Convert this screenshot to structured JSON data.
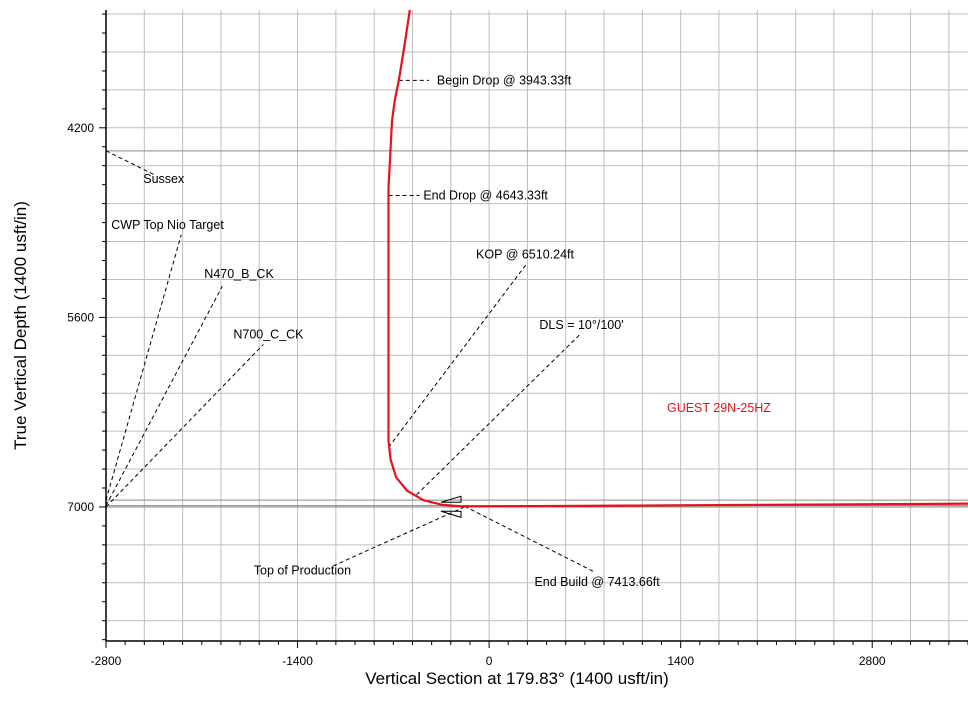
{
  "chart_data": {
    "type": "line",
    "title": "",
    "xlabel": "Vertical Section at 179.83° (1400 usft/in)",
    "ylabel": "True Vertical Depth (1400 usft/in)",
    "x_ticks": [
      -2800,
      -1400,
      0,
      1400,
      2800
    ],
    "y_ticks": [
      4200,
      5600,
      7000
    ],
    "xlim": [
      -2800,
      3500
    ],
    "ylim": [
      3330,
      7990
    ],
    "y_inverted": true,
    "grid": true,
    "colors": {
      "well": "#e8101c",
      "grid": "#bdbdbd",
      "leader": "#000000"
    },
    "series": [
      {
        "name": "GUEST 29N-25HZ",
        "x": [
          -580,
          -620,
          -660,
          -690,
          -710,
          -720,
          -730,
          -735,
          -735,
          -735,
          -720,
          -680,
          -600,
          -480,
          -340,
          -200,
          0,
          500,
          1000,
          1500,
          2000,
          2500,
          3000,
          3500
        ],
        "y": [
          3330,
          3600,
          3850,
          4000,
          4150,
          4350,
          4550,
          4643,
          5500,
          6510,
          6650,
          6780,
          6880,
          6950,
          6985,
          6995,
          6995,
          6993,
          6990,
          6987,
          6985,
          6982,
          6979,
          6975
        ]
      }
    ],
    "formation_lines": [
      {
        "name": "Sussex",
        "tvd": 4370
      },
      {
        "name": "CWP Top Nio Target",
        "tvd": 6950
      },
      {
        "name": "N470_B_CK",
        "tvd": 6990
      },
      {
        "name": "N700_C_CK",
        "tvd": 7000
      }
    ],
    "annotations": [
      {
        "text": "Begin Drop @ 3943.33ft",
        "x": -660,
        "y": 3850,
        "tx": -440,
        "ty": 3850
      },
      {
        "text": "End Drop @ 4643.33ft",
        "x": -735,
        "y": 4700,
        "tx": -510,
        "ty": 4700
      },
      {
        "text": "KOP @ 6510.24ft",
        "x": -735,
        "y": 6560,
        "tx": 270,
        "ty": 5210
      },
      {
        "text": "DLS = 10°/100'",
        "x": -530,
        "y": 6910,
        "tx": 660,
        "ty": 5730
      },
      {
        "text": "Top of Production",
        "x": -180,
        "y": 7000,
        "tx": -1150,
        "ty": 7440
      },
      {
        "text": "End Build @ 7413.66ft",
        "x": -180,
        "y": 6995,
        "tx": 770,
        "ty": 7480
      },
      {
        "text": "Sussex",
        "x": -2800,
        "y": 4370,
        "tx": -2440,
        "ty": 4550
      },
      {
        "text": "CWP Top Nio Target",
        "x": -2800,
        "y": 6950,
        "tx": -2250,
        "ty": 4990
      },
      {
        "text": "N470_B_CK",
        "x": -2800,
        "y": 6990,
        "tx": -1950,
        "ty": 5370
      },
      {
        "text": "N700_C_CK",
        "x": -2800,
        "y": 7000,
        "tx": -1650,
        "ty": 5800
      }
    ],
    "well_label": {
      "text": "GUEST 29N-25HZ",
      "x": 1300,
      "y": 6300
    }
  }
}
